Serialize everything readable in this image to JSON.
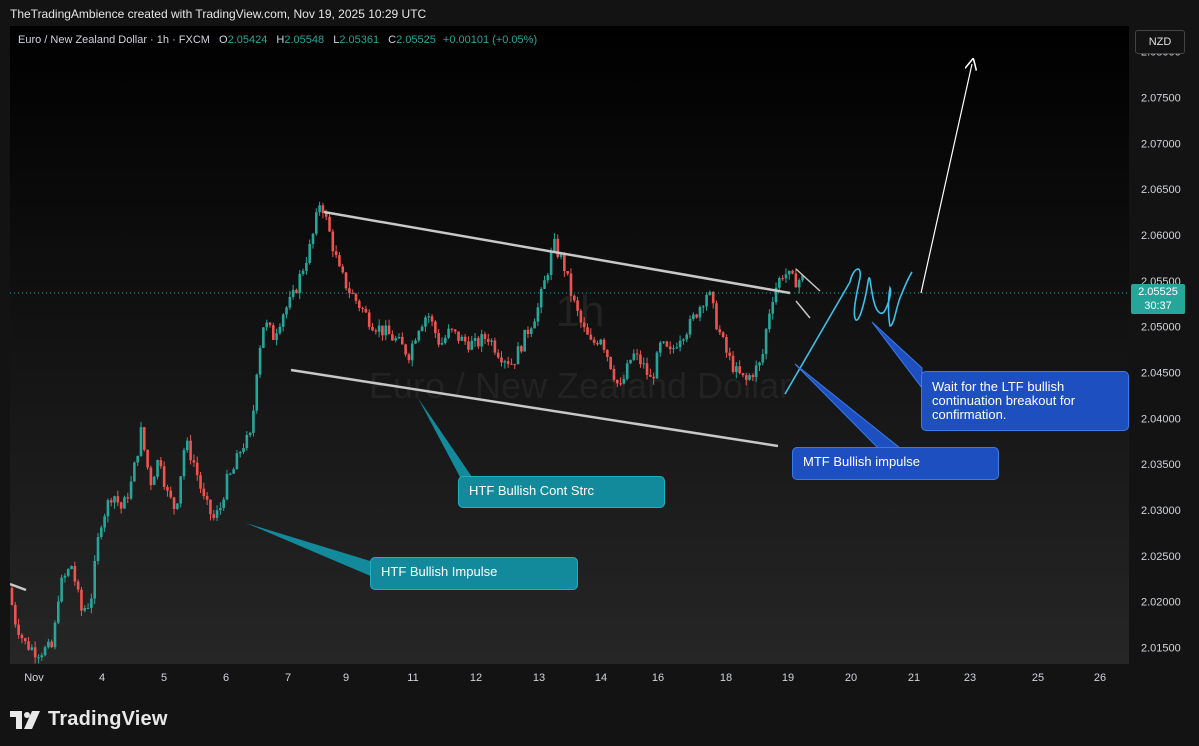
{
  "header": {
    "text": "TheTradingAmbience created with TradingView.com, Nov 19, 2025 10:29 UTC"
  },
  "legend": {
    "symbol": "Euro / New Zealand Dollar · 1h · FXCM",
    "o_label": "O",
    "o": "2.05424",
    "h_label": "H",
    "h": "2.05548",
    "l_label": "L",
    "l": "2.05361",
    "c_label": "C",
    "c": "2.05525",
    "change": "+0.00101 (+0.05%)"
  },
  "currency_button": "NZD",
  "watermark": {
    "line1": "1h",
    "line2": "Euro / New Zealand Dollar"
  },
  "last_price": {
    "value": "2.05525",
    "countdown": "30:37"
  },
  "annotations": {
    "htf_impulse": "HTF Bullish Impulse",
    "htf_cont": "HTF Bullish Cont Strc",
    "mtf_impulse": "MTF Bullish impulse",
    "ltf_wait": "Wait for the LTF bullish continuation breakout for confirmation."
  },
  "brand": "TradingView",
  "colors": {
    "up": "#26a69a",
    "down": "#ef5350",
    "accent_teal": "#128a9c",
    "accent_blue": "#1e4fc0"
  },
  "chart_data": {
    "type": "candlestick",
    "symbol": "EURNZD",
    "timeframe": "1h",
    "y_ticks": [
      "2.08000",
      "2.07500",
      "2.07000",
      "2.06500",
      "2.06000",
      "2.05500",
      "2.05000",
      "2.04500",
      "2.04000",
      "2.03500",
      "2.03000",
      "2.02500",
      "2.02000",
      "2.01500"
    ],
    "ylim": [
      2.0132,
      2.0828
    ],
    "x_ticks": [
      "Nov",
      "4",
      "5",
      "6",
      "7",
      "9",
      "11",
      "12",
      "13",
      "14",
      "16",
      "18",
      "19",
      "20",
      "21",
      "23",
      "25",
      "26"
    ],
    "last_close": 2.05525,
    "path": [
      [
        0,
        2.0215
      ],
      [
        0.2,
        2.018
      ],
      [
        0.5,
        2.0155
      ],
      [
        0.9,
        2.0145
      ],
      [
        1.4,
        2.015
      ],
      [
        1.6,
        2.0215
      ],
      [
        2.0,
        2.024
      ],
      [
        2.3,
        2.019
      ],
      [
        2.6,
        2.02
      ],
      [
        2.9,
        2.0285
      ],
      [
        3.3,
        2.032
      ],
      [
        3.6,
        2.03
      ],
      [
        3.9,
        2.033
      ],
      [
        4.2,
        2.0385
      ],
      [
        4.5,
        2.033
      ],
      [
        4.8,
        2.036
      ],
      [
        5.0,
        2.032
      ],
      [
        5.3,
        2.03
      ],
      [
        5.6,
        2.0375
      ],
      [
        5.9,
        2.035
      ],
      [
        6.2,
        2.031
      ],
      [
        6.5,
        2.029
      ],
      [
        6.7,
        2.03
      ],
      [
        6.9,
        2.033
      ],
      [
        7.1,
        2.034
      ],
      [
        7.4,
        2.037
      ],
      [
        7.7,
        2.038
      ],
      [
        7.9,
        2.0465
      ],
      [
        8.1,
        2.0505
      ],
      [
        8.4,
        2.049
      ],
      [
        8.7,
        2.0515
      ],
      [
        9.0,
        2.053
      ],
      [
        9.3,
        2.056
      ],
      [
        9.6,
        2.059
      ],
      [
        9.9,
        2.064
      ],
      [
        10.2,
        2.06
      ],
      [
        10.5,
        2.056
      ],
      [
        10.8,
        2.054
      ],
      [
        11.1,
        2.0525
      ],
      [
        11.5,
        2.0505
      ],
      [
        11.9,
        2.0495
      ],
      [
        12.3,
        2.0485
      ],
      [
        12.7,
        2.047
      ],
      [
        13.0,
        2.05
      ],
      [
        13.3,
        2.0515
      ],
      [
        13.7,
        2.048
      ],
      [
        14.0,
        2.0495
      ],
      [
        14.4,
        2.0485
      ],
      [
        14.8,
        2.048
      ],
      [
        15.2,
        2.049
      ],
      [
        15.6,
        2.047
      ],
      [
        16.0,
        2.046
      ],
      [
        16.4,
        2.049
      ],
      [
        16.8,
        2.052
      ],
      [
        17.1,
        2.056
      ],
      [
        17.3,
        2.059
      ],
      [
        17.6,
        2.057
      ],
      [
        17.9,
        2.053
      ],
      [
        18.2,
        2.05
      ],
      [
        18.5,
        2.048
      ],
      [
        18.8,
        2.049
      ],
      [
        19.1,
        2.046
      ],
      [
        19.4,
        2.043
      ],
      [
        19.8,
        2.047
      ],
      [
        20.1,
        2.046
      ],
      [
        20.4,
        2.044
      ],
      [
        20.7,
        2.048
      ],
      [
        21.0,
        2.047
      ],
      [
        21.3,
        2.049
      ],
      [
        21.6,
        2.05
      ],
      [
        21.9,
        2.052
      ],
      [
        22.2,
        2.054
      ],
      [
        22.5,
        2.05
      ],
      [
        22.8,
        2.047
      ],
      [
        23.1,
        2.045
      ],
      [
        23.4,
        2.044
      ],
      [
        23.6,
        2.045
      ],
      [
        23.9,
        2.046
      ],
      [
        24.1,
        2.051
      ],
      [
        24.3,
        2.054
      ],
      [
        24.6,
        2.056
      ],
      [
        24.9,
        2.055
      ],
      [
        25.2,
        2.0552
      ]
    ]
  }
}
